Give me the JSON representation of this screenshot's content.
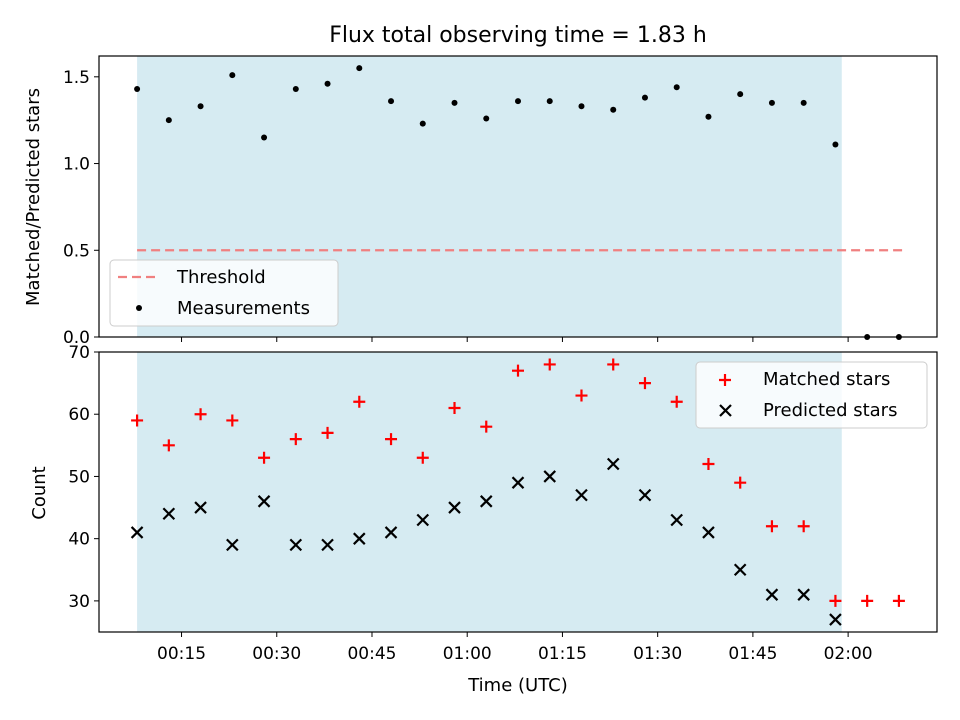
{
  "title": "Flux total observing time = 1.83 h",
  "chart_data": [
    {
      "type": "scatter",
      "panel": "top",
      "ylabel": "Matched/Predicted stars",
      "xlabel": "",
      "ylim": [
        0,
        1.62
      ],
      "yticks": [
        0.0,
        0.5,
        1.0,
        1.5
      ],
      "ytick_labels": [
        "0.0",
        "0.5",
        "1.0",
        "1.5"
      ],
      "shaded_region": [
        "00:08",
        "01:59"
      ],
      "threshold": {
        "name": "Threshold",
        "value": 0.5,
        "x_range": [
          "00:08",
          "02:09"
        ],
        "color": "#f08080",
        "style": "dashed"
      },
      "series": [
        {
          "name": "Measurements",
          "marker": "dot",
          "color": "#000000",
          "x": [
            "00:08",
            "00:13",
            "00:18",
            "00:23",
            "00:28",
            "00:33",
            "00:38",
            "00:43",
            "00:48",
            "00:53",
            "00:58",
            "01:03",
            "01:08",
            "01:13",
            "01:18",
            "01:23",
            "01:28",
            "01:33",
            "01:38",
            "01:43",
            "01:48",
            "01:53",
            "01:58",
            "02:03",
            "02:08"
          ],
          "y": [
            1.43,
            1.25,
            1.33,
            1.51,
            1.15,
            1.43,
            1.46,
            1.55,
            1.36,
            1.23,
            1.35,
            1.26,
            1.36,
            1.36,
            1.33,
            1.31,
            1.38,
            1.44,
            1.27,
            1.4,
            1.35,
            1.35,
            1.11,
            0.0,
            0.0
          ]
        }
      ],
      "legend": {
        "position": "lower-left",
        "entries": [
          "Threshold",
          "Measurements"
        ]
      }
    },
    {
      "type": "scatter",
      "panel": "bottom",
      "xlabel": "Time (UTC)",
      "ylabel": "Count",
      "ylim": [
        25,
        70
      ],
      "yticks": [
        30,
        40,
        50,
        60,
        70
      ],
      "ytick_labels": [
        "30",
        "40",
        "50",
        "60",
        "70"
      ],
      "xlim": [
        "00:02",
        "02:14"
      ],
      "xticks": [
        "00:15",
        "00:30",
        "00:45",
        "01:00",
        "01:15",
        "01:30",
        "01:45",
        "02:00"
      ],
      "shaded_region": [
        "00:08",
        "01:59"
      ],
      "series": [
        {
          "name": "Matched stars",
          "marker": "plus",
          "color": "#ff0000",
          "x": [
            "00:08",
            "00:13",
            "00:18",
            "00:23",
            "00:28",
            "00:33",
            "00:38",
            "00:43",
            "00:48",
            "00:53",
            "00:58",
            "01:03",
            "01:08",
            "01:13",
            "01:18",
            "01:23",
            "01:28",
            "01:33",
            "01:38",
            "01:43",
            "01:48",
            "01:53",
            "01:58",
            "02:03",
            "02:08"
          ],
          "y": [
            59,
            55,
            60,
            59,
            53,
            56,
            57,
            62,
            56,
            53,
            61,
            58,
            67,
            68,
            63,
            68,
            65,
            62,
            52,
            49,
            42,
            42,
            30,
            30,
            30
          ]
        },
        {
          "name": "Predicted stars",
          "marker": "x",
          "color": "#000000",
          "x": [
            "00:08",
            "00:13",
            "00:18",
            "00:23",
            "00:28",
            "00:33",
            "00:38",
            "00:43",
            "00:48",
            "00:53",
            "00:58",
            "01:03",
            "01:08",
            "01:13",
            "01:18",
            "01:23",
            "01:28",
            "01:33",
            "01:38",
            "01:43",
            "01:48",
            "01:53",
            "01:58"
          ],
          "y": [
            41,
            44,
            45,
            39,
            46,
            39,
            39,
            40,
            41,
            43,
            45,
            46,
            49,
            50,
            47,
            52,
            47,
            43,
            41,
            35,
            31,
            31,
            27
          ]
        }
      ],
      "legend": {
        "position": "top-right",
        "entries": [
          "Matched stars",
          "Predicted stars"
        ]
      }
    }
  ],
  "colors": {
    "shade": "#add8e6",
    "threshold": "#f08080",
    "matched": "#ff0000",
    "predicted": "#000000"
  }
}
